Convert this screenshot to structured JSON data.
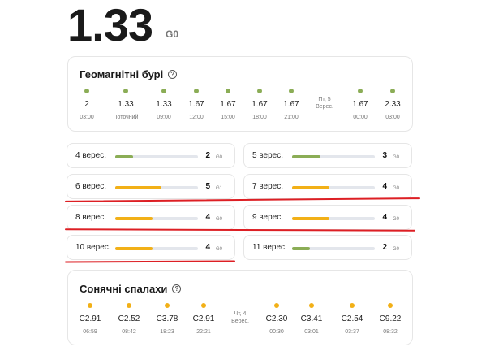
{
  "current": {
    "value": "1.33",
    "unit": "G0"
  },
  "geomagnetic": {
    "title": "Геомагнітні бурі",
    "help_glyph": "?",
    "points": [
      {
        "value": "2",
        "time": "03:00",
        "color": "#8bad56"
      },
      {
        "value": "1.33",
        "time": "Поточний",
        "color": "#8bad56"
      },
      {
        "value": "1.33",
        "time": "09:00",
        "color": "#8bad56"
      },
      {
        "value": "1.67",
        "time": "12:00",
        "color": "#8bad56"
      },
      {
        "value": "1.67",
        "time": "15:00",
        "color": "#8bad56"
      },
      {
        "value": "1.67",
        "time": "18:00",
        "color": "#8bad56"
      },
      {
        "value": "1.67",
        "time": "21:00",
        "color": "#8bad56"
      },
      {
        "divider_top": "Пт, 5",
        "divider_bottom": "Верес."
      },
      {
        "value": "1.67",
        "time": "00:00",
        "color": "#8bad56"
      },
      {
        "value": "2.33",
        "time": "03:00",
        "color": "#8bad56"
      }
    ]
  },
  "days": [
    {
      "label": "4 верес.",
      "level": 2,
      "unit": "G0",
      "color": "#8bad56",
      "fill": 0.22
    },
    {
      "label": "5 верес.",
      "level": 3,
      "unit": "G0",
      "color": "#8bad56",
      "fill": 0.34
    },
    {
      "label": "6 верес.",
      "level": 5,
      "unit": "G1",
      "color": "#f2b017",
      "fill": 0.56
    },
    {
      "label": "7 верес.",
      "level": 4,
      "unit": "G0",
      "color": "#f2b017",
      "fill": 0.45
    },
    {
      "label": "8 верес.",
      "level": 4,
      "unit": "G0",
      "color": "#f2b017",
      "fill": 0.45
    },
    {
      "label": "9 верес.",
      "level": 4,
      "unit": "G0",
      "color": "#f2b017",
      "fill": 0.45
    },
    {
      "label": "10 верес.",
      "level": 4,
      "unit": "G0",
      "color": "#f2b017",
      "fill": 0.45
    },
    {
      "label": "11 верес.",
      "level": 2,
      "unit": "G0",
      "color": "#8bad56",
      "fill": 0.22
    }
  ],
  "solar": {
    "title": "Сонячні спалахи",
    "help_glyph": "?",
    "points": [
      {
        "value": "C2.91",
        "time": "06:59",
        "color": "#f2b017"
      },
      {
        "value": "C2.52",
        "time": "08:42",
        "color": "#f2b017"
      },
      {
        "value": "C3.78",
        "time": "18:23",
        "color": "#f2b017"
      },
      {
        "value": "C2.91",
        "time": "22:21",
        "color": "#f2b017"
      },
      {
        "divider_top": "Чт, 4",
        "divider_bottom": "Верес."
      },
      {
        "value": "C2.30",
        "time": "00:30",
        "color": "#f2b017"
      },
      {
        "value": "C3.41",
        "time": "03:01",
        "color": "#f2b017"
      },
      {
        "value": "C2.54",
        "time": "03:37",
        "color": "#f2b017"
      },
      {
        "value": "C9.22",
        "time": "08:32",
        "color": "#f2b017"
      }
    ]
  },
  "colors": {
    "red_underline": "#dd1f24",
    "track": "#e3e6ec"
  }
}
